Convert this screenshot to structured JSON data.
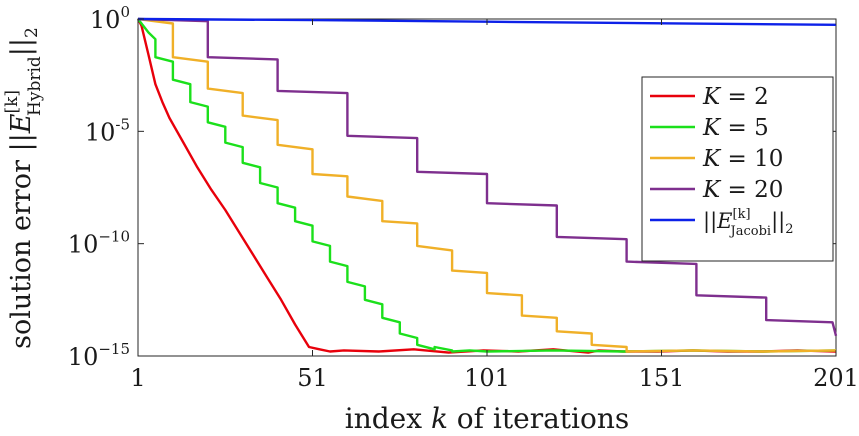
{
  "chart_data": {
    "type": "line",
    "ylabel": "solution error ||E[k] Hybrid||2",
    "ylabel_parts": {
      "prefix": "solution error ||",
      "var": "E",
      "sup": "[k]",
      "sub": "Hybrid",
      "suffix": "||",
      "norm": "2"
    },
    "xlabel": "index k of iterations",
    "xlabel_parts": {
      "prefix": "index ",
      "var": "k",
      "suffix": " of iterations"
    },
    "xlim": [
      1,
      201
    ],
    "ylim_log10": [
      -15,
      0
    ],
    "xticks": [
      1,
      51,
      101,
      151,
      201
    ],
    "xtick_labels": [
      "1",
      "51",
      "101",
      "151",
      "201"
    ],
    "yticks_log10": [
      0,
      -5,
      -10,
      -15
    ],
    "ytick_labels": [
      {
        "base": "10",
        "exp": "0"
      },
      {
        "base": "10",
        "exp": "-5"
      },
      {
        "base": "10",
        "exp": "−10"
      },
      {
        "base": "10",
        "exp": "−15"
      }
    ],
    "legend_position": "right",
    "series": [
      {
        "name": "K = 2",
        "legend": {
          "var": "K",
          "rest": " = 2"
        },
        "color": "#e8000b",
        "x": [
          1,
          2,
          4,
          6,
          8,
          10,
          14,
          18,
          22,
          26,
          30,
          34,
          38,
          42,
          46,
          50,
          53,
          56,
          60,
          70,
          80,
          90,
          100,
          110,
          120,
          130,
          133,
          140,
          150,
          160,
          170,
          180,
          190,
          201
        ],
        "logy": [
          0.0,
          -0.3,
          -1.6,
          -2.9,
          -3.7,
          -4.4,
          -5.5,
          -6.6,
          -7.6,
          -8.5,
          -9.5,
          -10.5,
          -11.5,
          -12.5,
          -13.6,
          -14.6,
          -14.7,
          -14.8,
          -14.75,
          -14.8,
          -14.7,
          -14.85,
          -14.75,
          -14.8,
          -14.7,
          -14.85,
          -14.75,
          -14.8,
          -14.8,
          -14.75,
          -14.8,
          -14.8,
          -14.75,
          -14.8
        ]
      },
      {
        "name": "K = 5",
        "legend": {
          "var": "K",
          "rest": " = 5"
        },
        "color": "#1be01b",
        "x": [
          1,
          4,
          6,
          6,
          11,
          11,
          16,
          16,
          21,
          21,
          26,
          26,
          31,
          31,
          36,
          36,
          41,
          41,
          46,
          46,
          51,
          51,
          56,
          56,
          61,
          61,
          66,
          66,
          71,
          71,
          76,
          76,
          81,
          81,
          86,
          86,
          91,
          91,
          96,
          101,
          120,
          140,
          160,
          180,
          201
        ],
        "logy": [
          0.0,
          -0.6,
          -0.9,
          -1.7,
          -1.9,
          -2.7,
          -2.9,
          -3.7,
          -3.9,
          -4.6,
          -4.8,
          -5.5,
          -5.7,
          -6.4,
          -6.6,
          -7.3,
          -7.5,
          -8.2,
          -8.4,
          -9.0,
          -9.2,
          -9.9,
          -10.1,
          -10.8,
          -11.0,
          -11.7,
          -11.9,
          -12.5,
          -12.7,
          -13.3,
          -13.5,
          -14.0,
          -14.2,
          -14.5,
          -14.7,
          -14.6,
          -14.75,
          -14.8,
          -14.75,
          -14.8,
          -14.75,
          -14.8,
          -14.75,
          -14.8,
          -14.75
        ]
      },
      {
        "name": "K = 10",
        "legend": {
          "var": "K",
          "rest": " = 10"
        },
        "color": "#f0b028",
        "x": [
          1,
          11,
          11,
          21,
          21,
          31,
          31,
          41,
          41,
          51,
          51,
          61,
          61,
          71,
          71,
          81,
          81,
          91,
          91,
          101,
          101,
          111,
          111,
          121,
          121,
          131,
          131,
          141,
          141,
          160,
          180,
          201
        ],
        "logy": [
          0.0,
          -0.2,
          -1.7,
          -1.9,
          -3.1,
          -3.3,
          -4.3,
          -4.5,
          -5.6,
          -5.8,
          -6.9,
          -7.0,
          -7.9,
          -8.1,
          -9.0,
          -9.1,
          -10.1,
          -10.3,
          -11.2,
          -11.3,
          -12.2,
          -12.3,
          -13.2,
          -13.3,
          -13.9,
          -14.0,
          -14.5,
          -14.6,
          -14.8,
          -14.75,
          -14.8,
          -14.75
        ]
      },
      {
        "name": "K = 20",
        "legend": {
          "var": "K",
          "rest": " = 20"
        },
        "color": "#7e2f8e",
        "x": [
          1,
          21,
          21,
          41,
          41,
          61,
          61,
          81,
          81,
          101,
          101,
          121,
          121,
          141,
          141,
          161,
          161,
          181,
          181,
          200,
          201
        ],
        "logy": [
          0.0,
          -0.1,
          -1.7,
          -1.8,
          -3.2,
          -3.3,
          -5.2,
          -5.3,
          -6.8,
          -6.9,
          -8.2,
          -8.3,
          -9.7,
          -9.8,
          -10.8,
          -10.9,
          -12.3,
          -12.4,
          -13.4,
          -13.5,
          -14.1
        ]
      },
      {
        "name": "||E[k] Jacobi||2",
        "legend": {
          "var": "E",
          "sup": "[k]",
          "sub": "Jacobi",
          "norm": "2"
        },
        "color": "#0d21e8",
        "x": [
          1,
          51,
          101,
          151,
          201
        ],
        "logy": [
          0.0,
          -0.05,
          -0.12,
          -0.19,
          -0.26
        ]
      }
    ]
  }
}
